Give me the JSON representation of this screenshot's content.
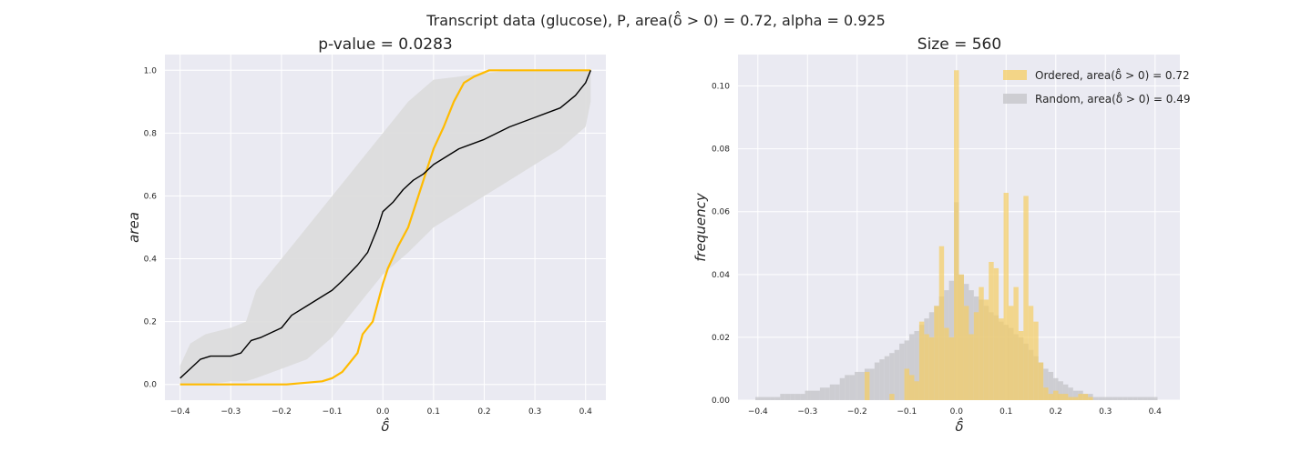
{
  "suptitle": "Transcript data (glucose), P, area(δ̂ > 0) = 0.72, alpha = 0.925",
  "colors": {
    "background": "#EAEAF2",
    "grid": "#FFFFFF",
    "ordered": "#FFBB00",
    "median": "#000000",
    "band": "#DCDCDC",
    "random_hist": "#C8C8CC",
    "ordered_hist": "#F5CD63"
  },
  "chart_data": [
    {
      "type": "line",
      "title": "p-value = 0.0283",
      "xlabel": "δ̂",
      "ylabel": "area",
      "xlim": [
        -0.43,
        0.44
      ],
      "ylim": [
        -0.05,
        1.05
      ],
      "xticks": [
        "−0.4",
        "−0.3",
        "−0.2",
        "−0.1",
        "0.0",
        "0.1",
        "0.2",
        "0.3",
        "0.4"
      ],
      "yticks": [
        "0.0",
        "0.2",
        "0.4",
        "0.6",
        "0.8",
        "1.0"
      ],
      "grid": true,
      "band": {
        "x": [
          -0.4,
          -0.38,
          -0.35,
          -0.3,
          -0.27,
          -0.25,
          -0.2,
          -0.15,
          -0.1,
          -0.05,
          0.0,
          0.05,
          0.1,
          0.15,
          0.2,
          0.25,
          0.3,
          0.35,
          0.4,
          0.41
        ],
        "upper": [
          0.06,
          0.13,
          0.16,
          0.18,
          0.2,
          0.3,
          0.4,
          0.5,
          0.6,
          0.7,
          0.8,
          0.9,
          0.97,
          0.98,
          0.99,
          1.0,
          1.0,
          1.0,
          1.0,
          1.0
        ],
        "lower": [
          0.0,
          0.0,
          0.0,
          0.01,
          0.01,
          0.02,
          0.05,
          0.08,
          0.15,
          0.25,
          0.35,
          0.42,
          0.5,
          0.55,
          0.6,
          0.65,
          0.7,
          0.75,
          0.82,
          0.9
        ]
      },
      "series": [
        {
          "name": "ordered",
          "x": [
            -0.4,
            -0.19,
            -0.12,
            -0.1,
            -0.08,
            -0.05,
            -0.04,
            -0.02,
            0.0,
            0.01,
            0.03,
            0.05,
            0.07,
            0.09,
            0.1,
            0.12,
            0.14,
            0.16,
            0.18,
            0.21,
            0.25,
            0.3,
            0.35,
            0.41
          ],
          "y": [
            0.0,
            0.0,
            0.01,
            0.02,
            0.04,
            0.1,
            0.16,
            0.2,
            0.32,
            0.37,
            0.44,
            0.5,
            0.6,
            0.7,
            0.75,
            0.82,
            0.9,
            0.96,
            0.98,
            1.0,
            1.0,
            1.0,
            1.0,
            1.0
          ]
        },
        {
          "name": "median",
          "x": [
            -0.4,
            -0.38,
            -0.36,
            -0.34,
            -0.3,
            -0.28,
            -0.26,
            -0.24,
            -0.2,
            -0.18,
            -0.15,
            -0.12,
            -0.1,
            -0.08,
            -0.05,
            -0.03,
            -0.01,
            0.0,
            0.02,
            0.04,
            0.06,
            0.08,
            0.1,
            0.12,
            0.15,
            0.2,
            0.25,
            0.3,
            0.35,
            0.38,
            0.4,
            0.41
          ],
          "y": [
            0.02,
            0.05,
            0.08,
            0.09,
            0.09,
            0.1,
            0.14,
            0.15,
            0.18,
            0.22,
            0.25,
            0.28,
            0.3,
            0.33,
            0.38,
            0.42,
            0.5,
            0.55,
            0.58,
            0.62,
            0.65,
            0.67,
            0.7,
            0.72,
            0.75,
            0.78,
            0.82,
            0.85,
            0.88,
            0.92,
            0.96,
            1.0
          ]
        }
      ]
    },
    {
      "type": "histogram",
      "title": "Size = 560",
      "xlabel": "δ̂",
      "ylabel": "frequency",
      "xlim": [
        -0.44,
        0.45
      ],
      "ylim": [
        0,
        0.11
      ],
      "xticks": [
        "−0.4",
        "−0.3",
        "−0.2",
        "−0.1",
        "0.0",
        "0.1",
        "0.2",
        "0.3",
        "0.4"
      ],
      "yticks": [
        "0.00",
        "0.02",
        "0.04",
        "0.06",
        "0.08",
        "0.10"
      ],
      "grid": true,
      "legend_position": "top-right",
      "bin_width": 0.01,
      "series": [
        {
          "name": "Random, area(δ̂ > 0) = 0.49",
          "bins_start": -0.4,
          "values": [
            0.001,
            0.001,
            0.001,
            0.001,
            0.001,
            0.002,
            0.002,
            0.002,
            0.002,
            0.002,
            0.003,
            0.003,
            0.003,
            0.004,
            0.004,
            0.005,
            0.005,
            0.007,
            0.008,
            0.008,
            0.009,
            0.009,
            0.01,
            0.01,
            0.012,
            0.013,
            0.014,
            0.015,
            0.016,
            0.018,
            0.019,
            0.021,
            0.022,
            0.024,
            0.026,
            0.028,
            0.03,
            0.033,
            0.035,
            0.038,
            0.063,
            0.04,
            0.037,
            0.035,
            0.033,
            0.032,
            0.03,
            0.028,
            0.027,
            0.025,
            0.024,
            0.023,
            0.021,
            0.02,
            0.018,
            0.016,
            0.014,
            0.012,
            0.01,
            0.009,
            0.007,
            0.006,
            0.005,
            0.004,
            0.003,
            0.003,
            0.002,
            0.002,
            0.001,
            0.001,
            0.001,
            0.001,
            0.001,
            0.001,
            0.001,
            0.001,
            0.001,
            0.001,
            0.001,
            0.001,
            0.001
          ]
        },
        {
          "name": "Ordered, area(δ̂ > 0) = 0.72",
          "bins_start": -0.4,
          "values": [
            0,
            0,
            0,
            0,
            0,
            0,
            0,
            0,
            0,
            0,
            0,
            0,
            0,
            0,
            0,
            0,
            0,
            0,
            0,
            0,
            0,
            0,
            0.009,
            0,
            0,
            0,
            0,
            0.002,
            0,
            0,
            0.01,
            0.008,
            0.006,
            0.025,
            0.021,
            0.02,
            0.03,
            0.049,
            0.023,
            0.02,
            0.105,
            0.04,
            0.03,
            0.021,
            0.028,
            0.036,
            0.032,
            0.044,
            0.042,
            0.026,
            0.066,
            0.03,
            0.036,
            0.022,
            0.065,
            0.03,
            0.025,
            0.012,
            0.004,
            0.002,
            0.003,
            0.002,
            0.002,
            0.001,
            0.001,
            0.002,
            0.002,
            0.001,
            0,
            0,
            0,
            0,
            0,
            0,
            0,
            0,
            0,
            0,
            0,
            0,
            0
          ]
        }
      ]
    }
  ]
}
